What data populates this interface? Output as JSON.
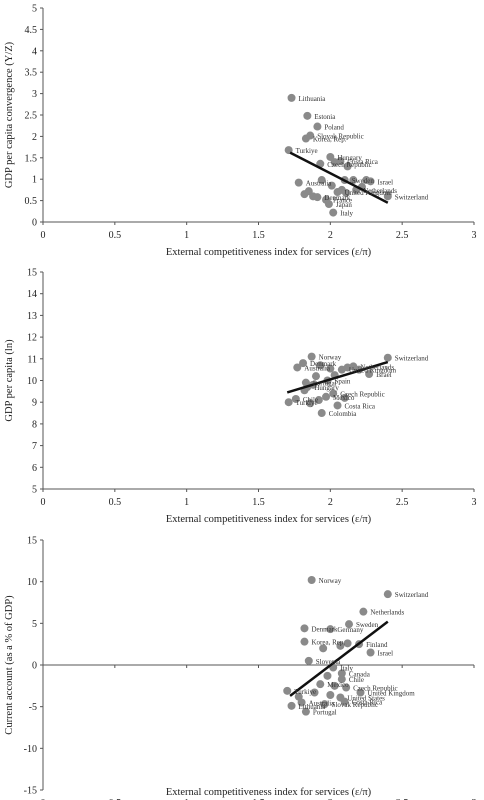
{
  "figure": {
    "panels": [
      "gdp-convergence",
      "gdp-per-capita",
      "current-account"
    ]
  },
  "chart_data": [
    {
      "type": "scatter",
      "id": "gdp-convergence",
      "xlabel": "External competitiveness index for services (ε/π)",
      "ylabel": "GDP per capita convergence (Y/Z)",
      "xlim": [
        0,
        3
      ],
      "ylim": [
        0,
        5
      ],
      "xticks": [
        "0",
        "0.5",
        "1",
        "1.5",
        "2",
        "2.5",
        "3"
      ],
      "yticks": [
        "0",
        "0.5",
        "1",
        "1.5",
        "2",
        "2.5",
        "3",
        "3.5",
        "4",
        "4.5",
        "5"
      ],
      "grid": false,
      "point_color": "#8a8a8a",
      "trend_color": "#111111",
      "trend": {
        "x": [
          1.72,
          2.4
        ],
        "y": [
          1.62,
          0.45
        ]
      },
      "points": [
        {
          "x": 1.73,
          "y": 2.9,
          "label": "Lithuania"
        },
        {
          "x": 1.84,
          "y": 2.48,
          "label": "Estonia"
        },
        {
          "x": 1.91,
          "y": 2.23,
          "label": "Poland"
        },
        {
          "x": 1.86,
          "y": 2.02,
          "label": "Slovak Republic"
        },
        {
          "x": 1.83,
          "y": 1.95,
          "label": "Korea, Rep."
        },
        {
          "x": 1.71,
          "y": 1.68,
          "label": "Turkiye"
        },
        {
          "x": 2.0,
          "y": 1.52,
          "label": "Hungary"
        },
        {
          "x": 2.07,
          "y": 1.42,
          "label": "Costa Rica"
        },
        {
          "x": 1.93,
          "y": 1.36,
          "label": "Czech Republic"
        },
        {
          "x": 1.78,
          "y": 0.92,
          "label": "Australia"
        },
        {
          "x": 2.1,
          "y": 0.98,
          "label": "Sweden"
        },
        {
          "x": 2.28,
          "y": 0.95,
          "label": "Israel"
        },
        {
          "x": 2.18,
          "y": 0.75,
          "label": "Netherlands"
        },
        {
          "x": 2.05,
          "y": 0.7,
          "label": "United Kingdom"
        },
        {
          "x": 1.91,
          "y": 0.58,
          "label": "Denmark"
        },
        {
          "x": 1.97,
          "y": 0.52,
          "label": "France"
        },
        {
          "x": 2.4,
          "y": 0.6,
          "label": "Switzerland"
        },
        {
          "x": 1.99,
          "y": 0.42,
          "label": "Japan"
        },
        {
          "x": 2.02,
          "y": 0.22,
          "label": "Italy"
        },
        {
          "x": 1.94,
          "y": 0.98,
          "label": ""
        },
        {
          "x": 2.01,
          "y": 0.85,
          "label": ""
        },
        {
          "x": 2.08,
          "y": 0.75,
          "label": ""
        },
        {
          "x": 2.16,
          "y": 0.98,
          "label": ""
        },
        {
          "x": 2.25,
          "y": 0.98,
          "label": ""
        },
        {
          "x": 2.22,
          "y": 0.82,
          "label": ""
        },
        {
          "x": 1.85,
          "y": 0.72,
          "label": ""
        },
        {
          "x": 1.82,
          "y": 0.65,
          "label": ""
        },
        {
          "x": 1.88,
          "y": 0.6,
          "label": ""
        },
        {
          "x": 2.11,
          "y": 0.68,
          "label": ""
        },
        {
          "x": 2.03,
          "y": 1.4,
          "label": ""
        },
        {
          "x": 2.12,
          "y": 1.3,
          "label": ""
        }
      ]
    },
    {
      "type": "scatter",
      "id": "gdp-per-capita",
      "xlabel": "External competitiveness index for services (ε/π)",
      "ylabel": "GDP per capita (ln)",
      "xlim": [
        0,
        3
      ],
      "ylim": [
        5,
        15
      ],
      "xticks": [
        "0",
        "0.5",
        "1",
        "1.5",
        "2",
        "2.5",
        "3"
      ],
      "yticks": [
        "5",
        "6",
        "7",
        "8",
        "9",
        "10",
        "11",
        "12",
        "13",
        "14",
        "15"
      ],
      "grid": false,
      "point_color": "#8a8a8a",
      "trend_color": "#111111",
      "trend": {
        "x": [
          1.7,
          2.4
        ],
        "y": [
          9.45,
          10.85
        ]
      },
      "points": [
        {
          "x": 1.87,
          "y": 11.1,
          "label": "Norway"
        },
        {
          "x": 2.4,
          "y": 11.05,
          "label": "Switzerland"
        },
        {
          "x": 1.81,
          "y": 10.8,
          "label": "Denmark"
        },
        {
          "x": 1.77,
          "y": 10.6,
          "label": "Australia"
        },
        {
          "x": 2.16,
          "y": 10.65,
          "label": "Netherlands"
        },
        {
          "x": 2.08,
          "y": 10.5,
          "label": "United Kingdom"
        },
        {
          "x": 2.27,
          "y": 10.3,
          "label": "Israel"
        },
        {
          "x": 1.98,
          "y": 10.0,
          "label": "Spain"
        },
        {
          "x": 1.83,
          "y": 9.9,
          "label": "Portugal"
        },
        {
          "x": 1.84,
          "y": 9.7,
          "label": "Hungary"
        },
        {
          "x": 2.02,
          "y": 9.4,
          "label": "Czech Republic"
        },
        {
          "x": 1.97,
          "y": 9.25,
          "label": "Mexico"
        },
        {
          "x": 1.76,
          "y": 9.15,
          "label": "Chile"
        },
        {
          "x": 1.71,
          "y": 9.0,
          "label": "Turkiye"
        },
        {
          "x": 2.05,
          "y": 8.85,
          "label": "Costa Rica"
        },
        {
          "x": 1.94,
          "y": 8.5,
          "label": "Colombia"
        },
        {
          "x": 1.93,
          "y": 10.7,
          "label": ""
        },
        {
          "x": 2.0,
          "y": 10.55,
          "label": ""
        },
        {
          "x": 2.12,
          "y": 10.6,
          "label": ""
        },
        {
          "x": 2.2,
          "y": 10.5,
          "label": ""
        },
        {
          "x": 1.9,
          "y": 10.2,
          "label": ""
        },
        {
          "x": 2.03,
          "y": 10.25,
          "label": ""
        },
        {
          "x": 1.82,
          "y": 9.55,
          "label": ""
        },
        {
          "x": 1.88,
          "y": 9.8,
          "label": ""
        },
        {
          "x": 1.92,
          "y": 9.1,
          "label": ""
        },
        {
          "x": 2.1,
          "y": 9.2,
          "label": ""
        },
        {
          "x": 1.86,
          "y": 8.95,
          "label": ""
        }
      ]
    },
    {
      "type": "scatter",
      "id": "current-account",
      "xlabel": "External competitiveness index for services (ε/π)",
      "ylabel": "Current account (as a % of GDP)",
      "xlim": [
        0,
        3
      ],
      "ylim": [
        -15,
        15
      ],
      "xticks": [
        "0",
        "0.5",
        "1",
        "1.5",
        "2",
        "2.5",
        "3"
      ],
      "yticks": [
        "-15",
        "-10",
        "-5",
        "0",
        "5",
        "10",
        "15"
      ],
      "grid": false,
      "point_color": "#8a8a8a",
      "trend_color": "#111111",
      "trend": {
        "x": [
          1.72,
          2.4
        ],
        "y": [
          -3.7,
          5.2
        ]
      },
      "points": [
        {
          "x": 1.87,
          "y": 10.2,
          "label": "Norway"
        },
        {
          "x": 2.4,
          "y": 8.5,
          "label": "Switzerland"
        },
        {
          "x": 2.23,
          "y": 6.4,
          "label": "Netherlands"
        },
        {
          "x": 2.13,
          "y": 4.9,
          "label": "Sweden"
        },
        {
          "x": 1.82,
          "y": 4.4,
          "label": "Denmark"
        },
        {
          "x": 2.0,
          "y": 4.3,
          "label": "Germany"
        },
        {
          "x": 1.82,
          "y": 2.8,
          "label": "Korea, Rep."
        },
        {
          "x": 2.2,
          "y": 2.5,
          "label": "Finland"
        },
        {
          "x": 2.28,
          "y": 1.5,
          "label": "Israel"
        },
        {
          "x": 1.85,
          "y": 0.5,
          "label": "Slovenia"
        },
        {
          "x": 2.02,
          "y": -0.3,
          "label": "Italy"
        },
        {
          "x": 2.08,
          "y": -1.0,
          "label": "Canada"
        },
        {
          "x": 2.08,
          "y": -1.7,
          "label": "Chile"
        },
        {
          "x": 1.93,
          "y": -2.3,
          "label": "Mexico"
        },
        {
          "x": 2.11,
          "y": -2.7,
          "label": "Czech Republic"
        },
        {
          "x": 2.21,
          "y": -3.3,
          "label": "United Kingdom"
        },
        {
          "x": 1.7,
          "y": -3.1,
          "label": "Turkiye"
        },
        {
          "x": 2.07,
          "y": -3.9,
          "label": "United States"
        },
        {
          "x": 2.1,
          "y": -4.4,
          "label": "Costa Rica"
        },
        {
          "x": 1.96,
          "y": -4.7,
          "label": "Slovak Republic"
        },
        {
          "x": 1.8,
          "y": -4.5,
          "label": "Australia"
        },
        {
          "x": 1.73,
          "y": -4.9,
          "label": "Lithuania"
        },
        {
          "x": 1.83,
          "y": -5.6,
          "label": "Portugal"
        },
        {
          "x": 2.07,
          "y": 2.3,
          "label": ""
        },
        {
          "x": 1.95,
          "y": 2.0,
          "label": ""
        },
        {
          "x": 2.12,
          "y": 2.6,
          "label": ""
        },
        {
          "x": 1.98,
          "y": -1.3,
          "label": ""
        },
        {
          "x": 1.78,
          "y": -3.8,
          "label": ""
        },
        {
          "x": 1.89,
          "y": -3.3,
          "label": ""
        },
        {
          "x": 2.0,
          "y": -3.6,
          "label": ""
        },
        {
          "x": 2.03,
          "y": -2.5,
          "label": ""
        }
      ]
    }
  ]
}
